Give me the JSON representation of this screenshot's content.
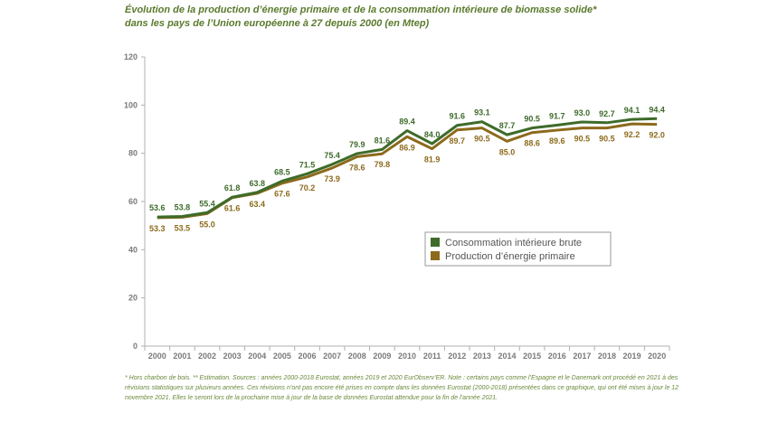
{
  "title": {
    "line1": "Évolution de la production d’énergie primaire et de la consommation intérieure de biomasse solide*",
    "line2": "dans les pays de l’Union européenne à 27 depuis 2000 (en Mtep)"
  },
  "footnote": "* Hors charbon de bois. ** Estimation. Sources : années 2000-2018 Eurostat, années 2019 et 2020 EurObserv’ER. Note : certains pays comme l’Espagne et le Danemark ont procédé en 2021 à des révisions statistiques sur plusieurs années. Ces révisions n’ont pas encore été prises en compte dans les données Eurostat (2000-2018) présentées dans ce graphique, qui ont été mises à jour le 12 novembre 2021. Elles le seront lors de la prochaine mise à jour de la base de données Eurostat attendue pour la fin de l’année 2021.",
  "chart_data": {
    "type": "line",
    "x": [
      "2000",
      "2001",
      "2002",
      "2003",
      "2004",
      "2005",
      "2006",
      "2007",
      "2008",
      "2009",
      "2010",
      "2011",
      "2012",
      "2013",
      "2014",
      "2015",
      "2016",
      "2017",
      "2018",
      "2019",
      "2020"
    ],
    "ylim": [
      0,
      120
    ],
    "yticks": [
      0,
      20,
      40,
      60,
      80,
      100,
      120
    ],
    "grid": false,
    "legend_position": "middle-right",
    "series": [
      {
        "name": "Consommation intérieure brute",
        "color": "#3e6b2a",
        "values": [
          53.6,
          53.8,
          55.4,
          61.8,
          63.8,
          68.5,
          71.5,
          75.4,
          79.9,
          81.6,
          89.4,
          84.0,
          91.6,
          93.1,
          87.7,
          90.5,
          91.7,
          93.0,
          92.7,
          94.1,
          94.4
        ],
        "labels": [
          "53.6",
          "53.8",
          "55.4",
          "61.8",
          "63.8",
          "68.5",
          "71.5",
          "75.4",
          "79.9",
          "81.6",
          "89.4",
          "84.0",
          "91.6",
          "93.1",
          "87.7",
          "90.5",
          "91.7",
          "93.0",
          "92.7",
          "94.1",
          "94.4"
        ]
      },
      {
        "name": "Production d’énergie primaire",
        "color": "#8c6a1c",
        "values": [
          53.3,
          53.5,
          55.0,
          61.6,
          63.4,
          67.6,
          70.2,
          73.9,
          78.6,
          79.8,
          86.9,
          81.9,
          89.7,
          90.5,
          85.0,
          88.6,
          89.6,
          90.5,
          90.5,
          92.2,
          92.0
        ],
        "labels": [
          "53.3",
          "53.5",
          "55.0",
          "61.6",
          "63.4",
          "67.6",
          "70.2",
          "73.9",
          "78.6",
          "79.8",
          "86.9",
          "81.9",
          "89.7",
          "90.5",
          "85.0",
          "88.6",
          "89.6",
          "90.5",
          "90.5",
          "92.2",
          "92.0"
        ]
      }
    ]
  }
}
